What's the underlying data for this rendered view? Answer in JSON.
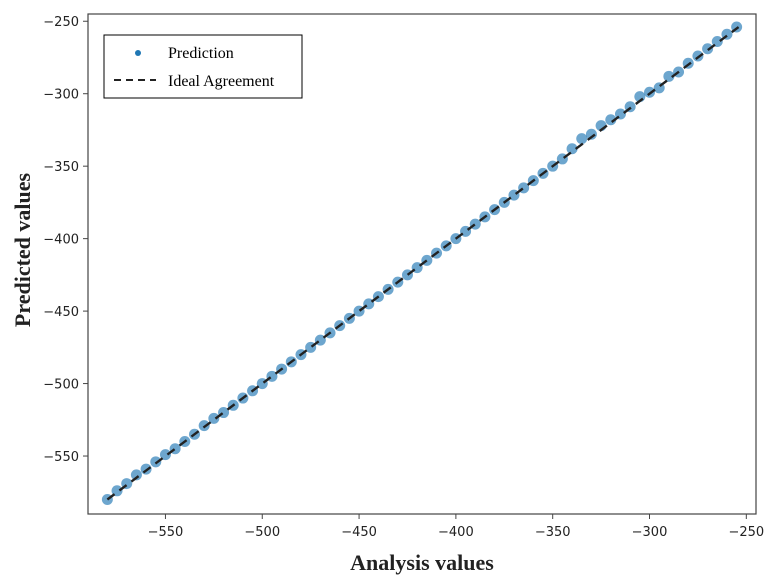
{
  "chart_data": {
    "type": "scatter",
    "xlabel": "Analysis values",
    "ylabel": "Predicted values",
    "xlim": [
      -590,
      -245
    ],
    "ylim": [
      -590,
      -245
    ],
    "x_ticks": [
      -550,
      -500,
      -450,
      -400,
      -350,
      -300,
      -250
    ],
    "y_ticks": [
      -250,
      -300,
      -350,
      -400,
      -450,
      -500,
      -550
    ],
    "x_tick_labels": [
      "−550",
      "−500",
      "−450",
      "−400",
      "−350",
      "−300",
      "−250"
    ],
    "y_tick_labels": [
      "−250",
      "−300",
      "−350",
      "−400",
      "−450",
      "−500",
      "−550"
    ],
    "grid": false,
    "legend_position": "top-left",
    "series": [
      {
        "name": "Prediction",
        "kind": "scatter",
        "color": "#1f77b4",
        "x": [
          -580,
          -575,
          -570,
          -565,
          -560,
          -555,
          -550,
          -545,
          -540,
          -535,
          -530,
          -525,
          -520,
          -515,
          -510,
          -505,
          -500,
          -495,
          -490,
          -485,
          -480,
          -475,
          -470,
          -465,
          -460,
          -455,
          -450,
          -445,
          -440,
          -435,
          -430,
          -425,
          -420,
          -415,
          -410,
          -405,
          -400,
          -395,
          -390,
          -385,
          -380,
          -375,
          -370,
          -365,
          -360,
          -355,
          -350,
          -345,
          -340,
          -335,
          -330,
          -325,
          -320,
          -315,
          -310,
          -305,
          -300,
          -295,
          -290,
          -285,
          -280,
          -275,
          -270,
          -265,
          -260,
          -255
        ],
        "y": [
          -580,
          -574,
          -569,
          -563,
          -559,
          -554,
          -549,
          -545,
          -540,
          -535,
          -529,
          -524,
          -520,
          -515,
          -510,
          -505,
          -500,
          -495,
          -490,
          -485,
          -480,
          -475,
          -470,
          -465,
          -460,
          -455,
          -450,
          -445,
          -440,
          -435,
          -430,
          -425,
          -420,
          -415,
          -410,
          -405,
          -400,
          -395,
          -390,
          -385,
          -380,
          -375,
          -370,
          -365,
          -360,
          -355,
          -350,
          -345,
          -338,
          -331,
          -328,
          -322,
          -318,
          -314,
          -309,
          -302,
          -299,
          -296,
          -288,
          -285,
          -279,
          -274,
          -269,
          -264,
          -259,
          -254
        ]
      },
      {
        "name": "Ideal Agreement",
        "kind": "line",
        "style": "dashed",
        "color": "#000000",
        "x": [
          -580,
          -254
        ],
        "y": [
          -580,
          -254
        ]
      }
    ]
  }
}
